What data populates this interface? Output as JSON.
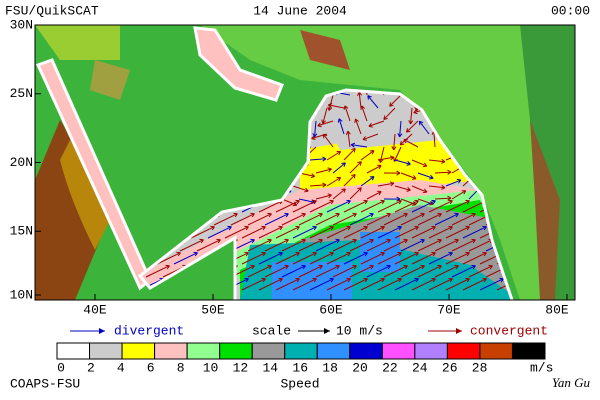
{
  "header": {
    "left": "FSU/QuikSCAT",
    "date": "14 June 2004",
    "time": "00:00"
  },
  "map": {
    "lat_labels": [
      "30N",
      "25N",
      "20N",
      "15N",
      "10N"
    ],
    "lon_labels": [
      "40E",
      "50E",
      "60E",
      "70E",
      "80E"
    ]
  },
  "legend": {
    "divergent": "divergent",
    "scale": "scale",
    "scale_value": "10 m/s",
    "convergent": "convergent"
  },
  "colorbar": {
    "ticks": [
      0,
      2,
      4,
      6,
      8,
      10,
      12,
      14,
      16,
      18,
      20,
      22,
      24,
      26,
      28
    ],
    "unit": "m/s",
    "label": "Speed",
    "colors": [
      "#ffffff",
      "#cccccc",
      "#ffff00",
      "#ffc0c0",
      "#90ff90",
      "#00e000",
      "#999999",
      "#00b0b0",
      "#3090ff",
      "#0000d0",
      "#ff50ff",
      "#b080ff",
      "#ff0000",
      "#c84000",
      "#000000"
    ]
  },
  "footer": {
    "left": "COAPS-FSU",
    "right": "Yan Gu"
  }
}
